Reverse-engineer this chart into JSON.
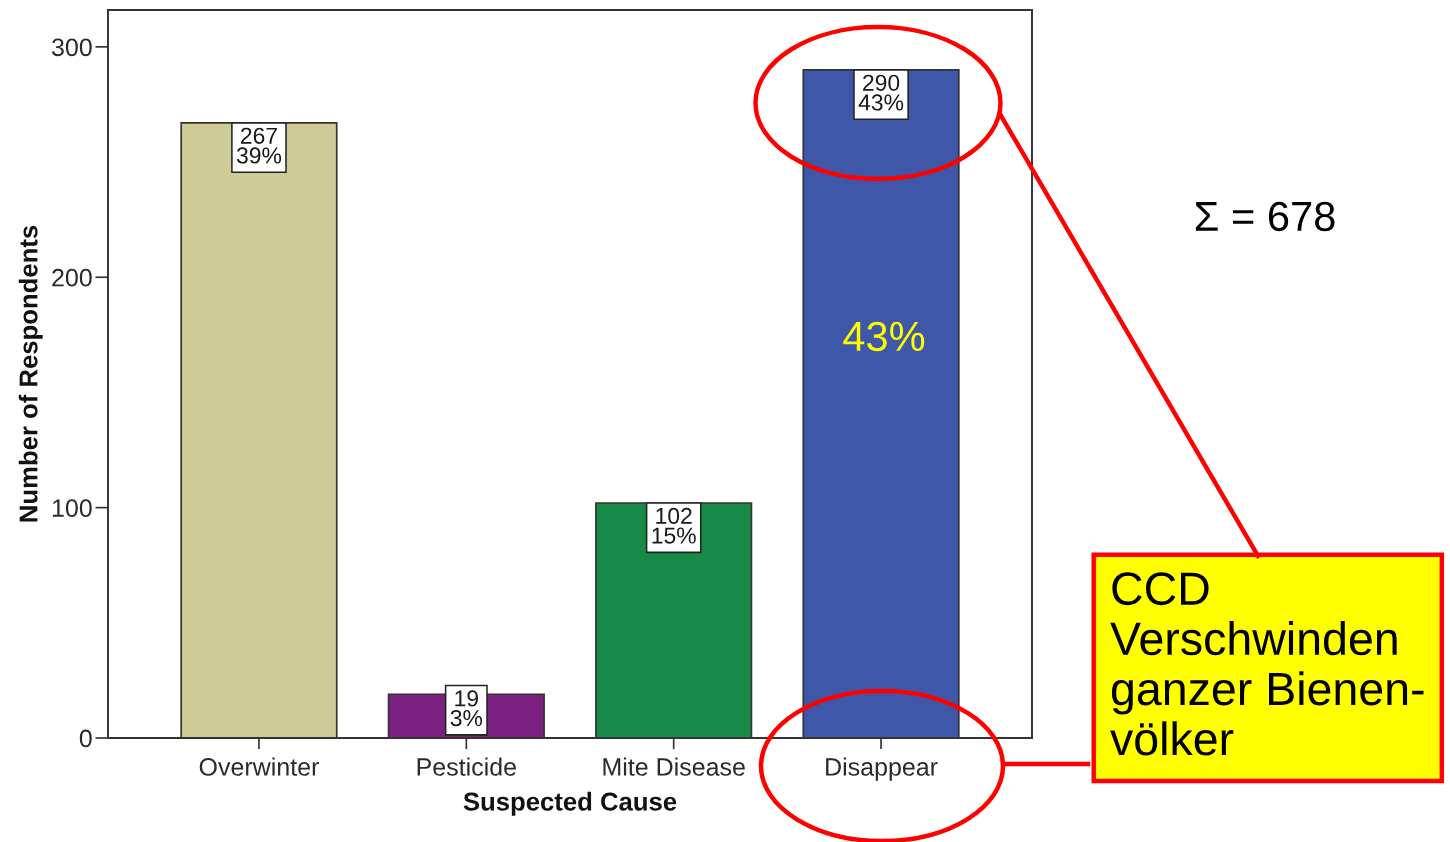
{
  "chart_data": {
    "type": "bar",
    "xlabel": "Suspected Cause",
    "ylabel": "Number of Respondents",
    "categories": [
      "Overwinter",
      "Pesticide",
      "Mite Disease",
      "Disappear"
    ],
    "values": [
      267,
      19,
      102,
      290
    ],
    "colors": [
      "#cfcb96",
      "#7b2181",
      "#178a47",
      "#3f57a8"
    ],
    "value_labels": [
      "267\n39%",
      "19\n3%",
      "102\n15%",
      "290\n43%"
    ],
    "ylim": [
      0,
      316
    ],
    "yticks": [
      0,
      100,
      200,
      300
    ],
    "annotations": [
      "43%",
      "Σ = 678",
      "CCD\nVerschwinden\nganzer Bienen-\nvölker"
    ]
  }
}
